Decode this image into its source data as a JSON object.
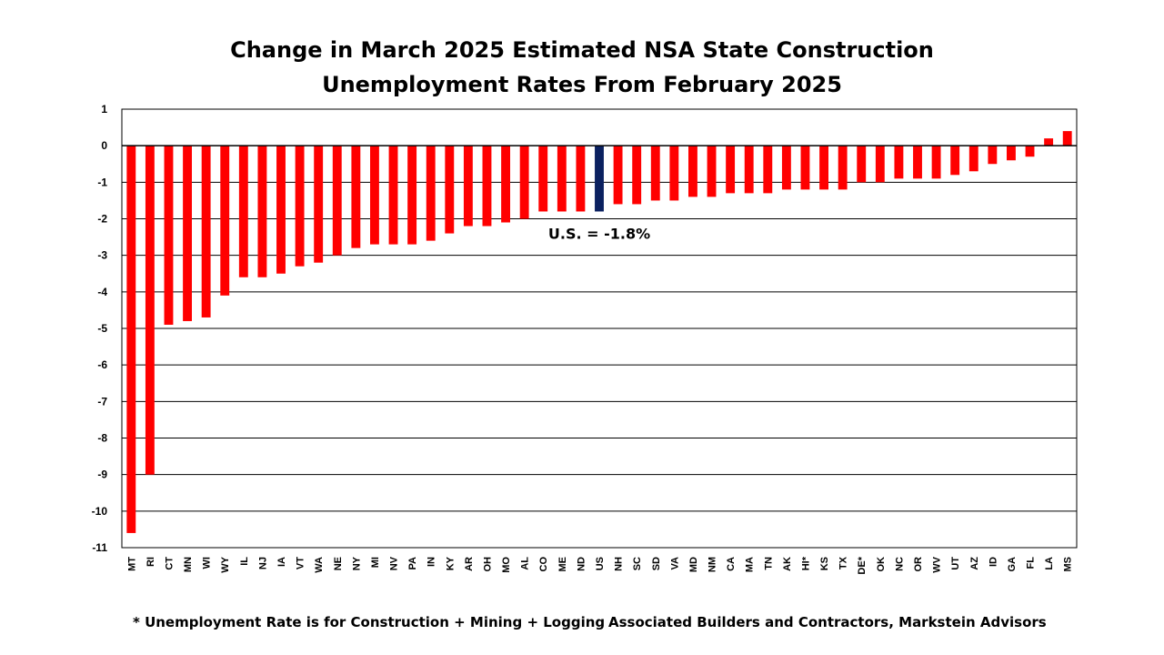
{
  "chart_data": {
    "type": "bar",
    "title_lines": [
      "Change in March 2025 Estimated NSA State Construction",
      "Unemployment Rates From February 2025"
    ],
    "xlabel": "",
    "ylabel": "",
    "ylim": [
      -11,
      1
    ],
    "yticks": [
      1,
      0,
      -1,
      -2,
      -3,
      -4,
      -5,
      -6,
      -7,
      -8,
      -9,
      -10,
      -11
    ],
    "grid": true,
    "legend": "none",
    "categories": [
      "MT",
      "RI",
      "CT",
      "MN",
      "WI",
      "WY",
      "IL",
      "NJ",
      "IA",
      "VT",
      "WA",
      "NE",
      "NY",
      "MI",
      "NV",
      "PA",
      "IN",
      "KY",
      "AR",
      "OH",
      "MO",
      "AL",
      "CO",
      "ME",
      "ND",
      "US",
      "NH",
      "SC",
      "SD",
      "VA",
      "MD",
      "NM",
      "CA",
      "MA",
      "TN",
      "AK",
      "HI*",
      "KS",
      "TX",
      "DE*",
      "OK",
      "NC",
      "OR",
      "WV",
      "UT",
      "AZ",
      "ID",
      "GA",
      "FL",
      "LA",
      "MS"
    ],
    "values": [
      -10.6,
      -9.0,
      -4.9,
      -4.8,
      -4.7,
      -4.1,
      -3.6,
      -3.6,
      -3.5,
      -3.3,
      -3.2,
      -3.0,
      -2.8,
      -2.7,
      -2.7,
      -2.7,
      -2.6,
      -2.4,
      -2.2,
      -2.2,
      -2.1,
      -2.0,
      -1.8,
      -1.8,
      -1.8,
      -1.8,
      -1.6,
      -1.6,
      -1.5,
      -1.5,
      -1.4,
      -1.4,
      -1.3,
      -1.3,
      -1.3,
      -1.2,
      -1.2,
      -1.2,
      -1.2,
      -1.0,
      -1.0,
      -0.9,
      -0.9,
      -0.9,
      -0.8,
      -0.7,
      -0.5,
      -0.4,
      -0.3,
      0.2,
      0.4
    ],
    "highlight_category": "US",
    "colors": {
      "bar": "#ff0000",
      "highlight": "#0b2160"
    },
    "annotation": "U.S. = -1.8%"
  },
  "footnotes": {
    "left": "* Unemployment Rate is for Construction + Mining + Logging",
    "right": "Associated Builders and Contractors, Markstein Advisors"
  }
}
